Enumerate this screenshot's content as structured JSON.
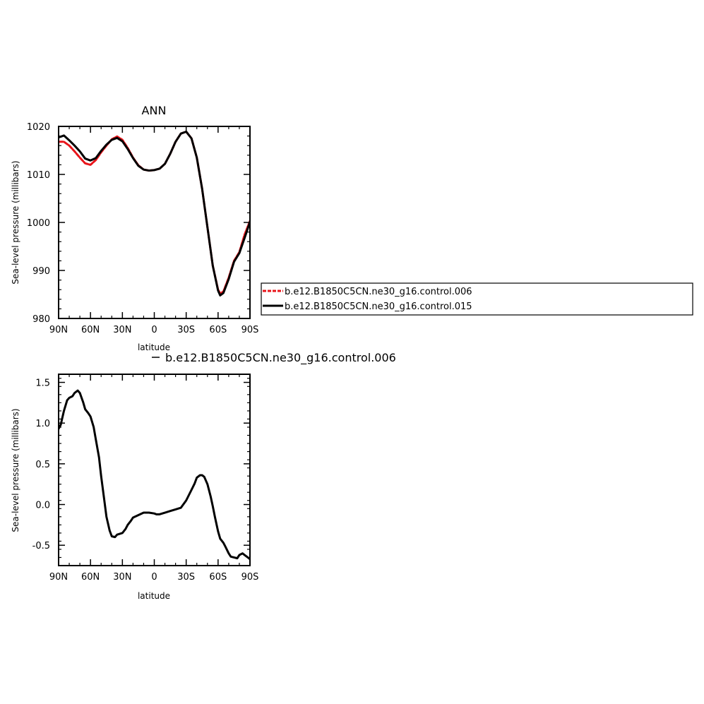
{
  "chart_data": [
    {
      "type": "line",
      "title": "ANN",
      "xlabel": "latitude",
      "ylabel": "Sea-level pressure (millibars)",
      "xlim": [
        -90,
        90
      ],
      "ylim": [
        980,
        1020
      ],
      "xticks": [
        -90,
        -60,
        -30,
        0,
        30,
        60,
        90
      ],
      "xtick_labels": [
        "90N",
        "60N",
        "30N",
        "0",
        "30S",
        "60S",
        "90S"
      ],
      "yticks": [
        980,
        990,
        1000,
        1010,
        1020
      ],
      "ytick_labels": [
        "980",
        "990",
        "1000",
        "1010",
        "1020"
      ],
      "grid": false,
      "legend_placement": "right",
      "series": [
        {
          "name": "b.e12.B1850C5CN.ne30_g16.control.006",
          "color": "#e8141a",
          "style": "dashed",
          "x": [
            -90,
            -85,
            -80,
            -75,
            -70,
            -65,
            -60,
            -55,
            -50,
            -45,
            -40,
            -35,
            -30,
            -25,
            -20,
            -15,
            -10,
            -5,
            0,
            5,
            10,
            15,
            20,
            25,
            30,
            35,
            40,
            45,
            50,
            55,
            60,
            62,
            65,
            70,
            75,
            80,
            85,
            90
          ],
          "y": [
            1016.8,
            1016.8,
            1016,
            1014.8,
            1013.5,
            1012.3,
            1012,
            1013,
            1014.6,
            1016,
            1017.3,
            1017.9,
            1017.2,
            1015.5,
            1013.5,
            1011.9,
            1011,
            1010.8,
            1010.9,
            1011.2,
            1012.2,
            1014.3,
            1016.8,
            1018.5,
            1018.9,
            1017.5,
            1013.5,
            1007,
            999,
            991,
            986,
            985.2,
            985.6,
            988.5,
            992,
            993.8,
            997.5,
            1000.3
          ]
        },
        {
          "name": "b.e12.B1850C5CN.ne30_g16.control.015",
          "color": "#000000",
          "style": "solid",
          "x": [
            -90,
            -85,
            -80,
            -75,
            -70,
            -65,
            -60,
            -55,
            -50,
            -45,
            -40,
            -35,
            -30,
            -25,
            -20,
            -15,
            -10,
            -5,
            0,
            5,
            10,
            15,
            20,
            25,
            30,
            35,
            40,
            45,
            50,
            55,
            60,
            62,
            65,
            70,
            75,
            80,
            85,
            90
          ],
          "y": [
            1017.7,
            1018.1,
            1017.1,
            1016,
            1014.8,
            1013.3,
            1012.9,
            1013.4,
            1014.9,
            1016.2,
            1017.2,
            1017.6,
            1016.9,
            1015.3,
            1013.4,
            1011.8,
            1011,
            1010.8,
            1010.9,
            1011.2,
            1012.2,
            1014.3,
            1016.8,
            1018.5,
            1018.9,
            1017.5,
            1013.5,
            1007,
            999,
            991,
            985.8,
            984.8,
            985.3,
            988.2,
            991.8,
            993.6,
            996.8,
            1000.1
          ]
        }
      ]
    },
    {
      "type": "line",
      "title": "",
      "subtitle": "b.e12.B1850C5CN.ne30_g16.control.006",
      "xlabel": "latitude",
      "ylabel": "Sea-level pressure (millibars)",
      "xlim": [
        -90,
        90
      ],
      "ylim": [
        -0.75,
        1.6
      ],
      "xticks": [
        -90,
        -60,
        -30,
        0,
        30,
        60,
        90
      ],
      "xtick_labels": [
        "90N",
        "60N",
        "30N",
        "0",
        "30S",
        "60S",
        "90S"
      ],
      "yticks": [
        -0.5,
        0.0,
        0.5,
        1.0,
        1.5
      ],
      "ytick_labels": [
        "-0.5",
        "0.0",
        "0.5",
        "1.0",
        "1.5"
      ],
      "grid": false,
      "series": [
        {
          "color": "#000000",
          "style": "solid",
          "x": [
            -90,
            -88,
            -85,
            -82,
            -80,
            -77,
            -75,
            -72,
            -70,
            -67,
            -65,
            -62,
            -60,
            -57,
            -55,
            -52,
            -50,
            -47,
            -45,
            -42,
            -40,
            -37,
            -35,
            -30,
            -27,
            -25,
            -22,
            -20,
            -15,
            -10,
            -5,
            0,
            2,
            5,
            10,
            15,
            20,
            25,
            30,
            35,
            38,
            40,
            43,
            45,
            47,
            50,
            53,
            55,
            57,
            60,
            62,
            65,
            67,
            70,
            72,
            75,
            78,
            80,
            83,
            85,
            88,
            90
          ],
          "y": [
            0.93,
            0.98,
            1.15,
            1.28,
            1.31,
            1.33,
            1.37,
            1.4,
            1.37,
            1.26,
            1.17,
            1.12,
            1.08,
            0.95,
            0.8,
            0.58,
            0.35,
            0.05,
            -0.15,
            -0.32,
            -0.39,
            -0.4,
            -0.37,
            -0.35,
            -0.3,
            -0.25,
            -0.2,
            -0.16,
            -0.13,
            -0.1,
            -0.1,
            -0.11,
            -0.12,
            -0.12,
            -0.1,
            -0.08,
            -0.06,
            -0.04,
            0.05,
            0.18,
            0.26,
            0.33,
            0.36,
            0.36,
            0.34,
            0.25,
            0.1,
            -0.02,
            -0.15,
            -0.33,
            -0.42,
            -0.47,
            -0.52,
            -0.6,
            -0.64,
            -0.65,
            -0.66,
            -0.62,
            -0.6,
            -0.62,
            -0.65,
            -0.67
          ]
        }
      ]
    }
  ]
}
